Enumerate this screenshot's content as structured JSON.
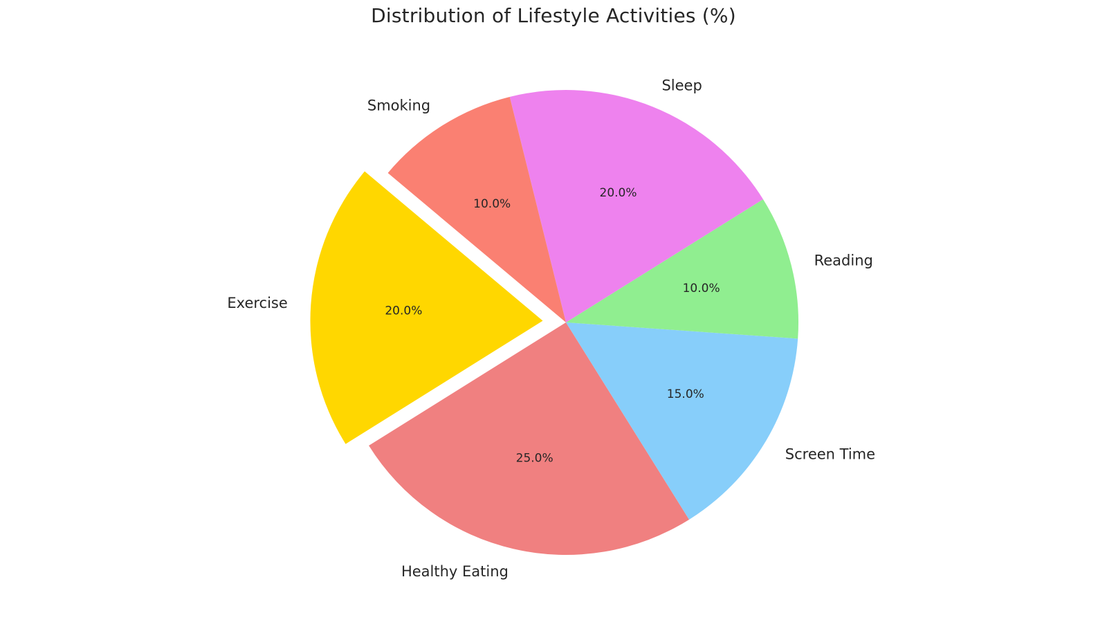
{
  "chart_data": {
    "type": "pie",
    "title": "Distribution of Lifestyle Activities (%)",
    "start_angle_deg": 140,
    "direction": "counterclockwise",
    "exploded": [
      "Exercise"
    ],
    "slices": [
      {
        "label": "Exercise",
        "value": 20,
        "pct_label": "20.0%",
        "color": "#FFD700"
      },
      {
        "label": "Healthy Eating",
        "value": 25,
        "pct_label": "25.0%",
        "color": "#F08080"
      },
      {
        "label": "Screen Time",
        "value": 15,
        "pct_label": "15.0%",
        "color": "#87CEFA"
      },
      {
        "label": "Reading",
        "value": 10,
        "pct_label": "10.0%",
        "color": "#90EE90"
      },
      {
        "label": "Sleep",
        "value": 20,
        "pct_label": "20.0%",
        "color": "#EE82EE"
      },
      {
        "label": "Smoking",
        "value": 10,
        "pct_label": "10.0%",
        "color": "#FA8072"
      }
    ]
  }
}
